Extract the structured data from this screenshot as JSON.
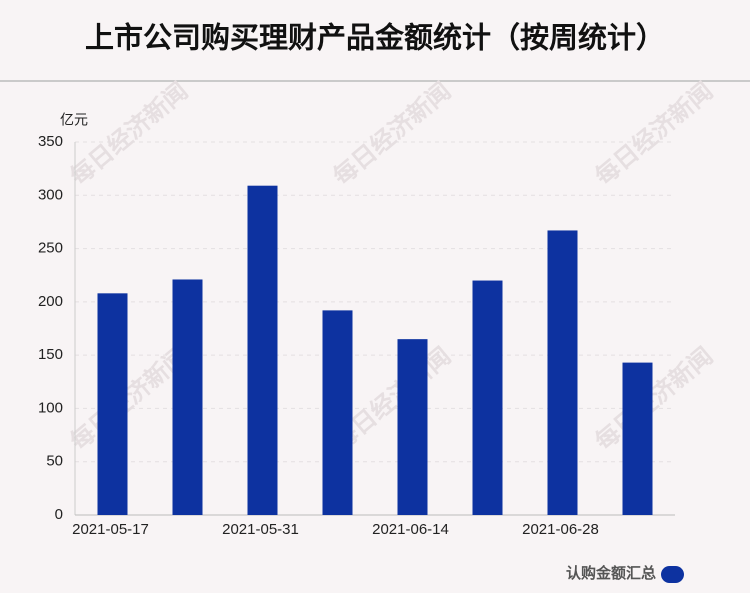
{
  "chart_data": {
    "type": "bar",
    "title": "上市公司购买理财产品金额统计（按周统计）",
    "y_unit": "亿元",
    "watermark": "每日经济新闻",
    "categories": [
      "2021-05-17",
      null,
      "2021-05-31",
      null,
      "2021-06-14",
      null,
      "2021-06-28",
      null
    ],
    "series": [
      {
        "name": "认购金额汇总",
        "color": "#0d32a0",
        "values": [
          208,
          221,
          309,
          192,
          165,
          220,
          267,
          143
        ]
      }
    ],
    "ylim": [
      0,
      350
    ],
    "yticks": [
      0,
      50,
      100,
      150,
      200,
      250,
      300,
      350
    ],
    "grid": true
  }
}
